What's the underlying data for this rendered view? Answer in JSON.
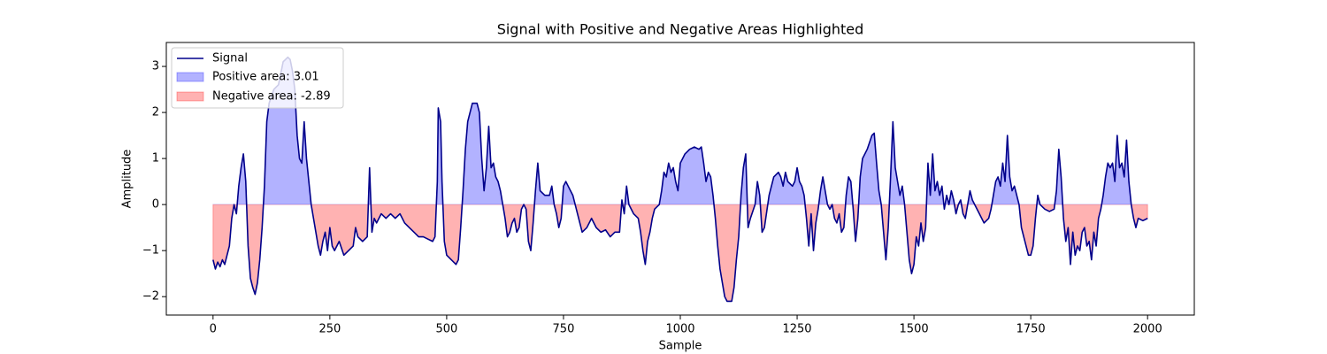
{
  "chart_data": {
    "type": "line",
    "title": "Signal with Positive and Negative Areas Highlighted",
    "xlabel": "Sample",
    "ylabel": "Amplitude",
    "x": [
      0,
      5,
      10,
      15,
      20,
      25,
      30,
      35,
      40,
      45,
      50,
      55,
      60,
      65,
      70,
      75,
      80,
      85,
      90,
      95,
      100,
      105,
      110,
      115,
      120,
      130,
      140,
      150,
      160,
      165,
      170,
      175,
      180,
      185,
      190,
      195,
      200,
      205,
      210,
      215,
      220,
      225,
      230,
      235,
      240,
      245,
      250,
      255,
      260,
      270,
      280,
      290,
      300,
      305,
      310,
      320,
      330,
      335,
      340,
      345,
      350,
      360,
      370,
      380,
      390,
      400,
      410,
      420,
      430,
      440,
      450,
      460,
      470,
      475,
      480,
      482,
      487,
      490,
      495,
      500,
      510,
      520,
      525,
      530,
      535,
      540,
      545,
      555,
      565,
      570,
      575,
      580,
      585,
      590,
      595,
      600,
      605,
      610,
      615,
      620,
      625,
      630,
      635,
      640,
      645,
      650,
      655,
      660,
      665,
      670,
      675,
      680,
      685,
      690,
      695,
      700,
      710,
      720,
      725,
      730,
      735,
      740,
      745,
      750,
      755,
      760,
      770,
      780,
      790,
      800,
      810,
      820,
      830,
      840,
      850,
      860,
      870,
      875,
      880,
      885,
      890,
      900,
      910,
      915,
      920,
      925,
      930,
      935,
      940,
      945,
      950,
      955,
      960,
      965,
      970,
      975,
      980,
      985,
      990,
      995,
      1000,
      1010,
      1020,
      1030,
      1040,
      1045,
      1050,
      1055,
      1060,
      1065,
      1070,
      1075,
      1080,
      1085,
      1090,
      1095,
      1100,
      1110,
      1115,
      1120,
      1125,
      1130,
      1135,
      1140,
      1145,
      1150,
      1160,
      1165,
      1170,
      1175,
      1180,
      1190,
      1200,
      1210,
      1215,
      1220,
      1225,
      1230,
      1240,
      1245,
      1250,
      1255,
      1260,
      1265,
      1270,
      1275,
      1280,
      1285,
      1290,
      1295,
      1300,
      1305,
      1310,
      1315,
      1320,
      1325,
      1330,
      1335,
      1340,
      1345,
      1350,
      1355,
      1360,
      1365,
      1370,
      1375,
      1380,
      1385,
      1390,
      1400,
      1410,
      1415,
      1420,
      1425,
      1430,
      1435,
      1440,
      1445,
      1450,
      1455,
      1460,
      1465,
      1470,
      1475,
      1480,
      1485,
      1490,
      1495,
      1500,
      1505,
      1510,
      1515,
      1520,
      1525,
      1530,
      1535,
      1540,
      1545,
      1550,
      1555,
      1560,
      1565,
      1570,
      1575,
      1580,
      1585,
      1590,
      1595,
      1600,
      1605,
      1610,
      1620,
      1625,
      1630,
      1640,
      1650,
      1660,
      1665,
      1670,
      1675,
      1680,
      1685,
      1690,
      1695,
      1700,
      1705,
      1710,
      1715,
      1720,
      1725,
      1730,
      1740,
      1745,
      1750,
      1755,
      1760,
      1765,
      1770,
      1780,
      1790,
      1800,
      1805,
      1810,
      1815,
      1820,
      1825,
      1830,
      1835,
      1840,
      1845,
      1850,
      1855,
      1860,
      1865,
      1870,
      1875,
      1880,
      1885,
      1890,
      1895,
      1900,
      1905,
      1910,
      1915,
      1920,
      1925,
      1930,
      1935,
      1940,
      1945,
      1950,
      1955,
      1960,
      1965,
      1970,
      1975,
      1980,
      1990,
      2000
    ],
    "series": [
      {
        "name": "Signal",
        "color": "#00008b",
        "values": [
          -1.2,
          -1.4,
          -1.25,
          -1.35,
          -1.2,
          -1.3,
          -1.1,
          -0.9,
          -0.3,
          0.0,
          -0.2,
          0.4,
          0.8,
          1.1,
          0.5,
          -0.9,
          -1.6,
          -1.8,
          -1.95,
          -1.7,
          -1.2,
          -0.5,
          0.4,
          1.8,
          2.2,
          2.5,
          2.6,
          3.1,
          3.2,
          3.15,
          2.9,
          2.5,
          1.5,
          1.0,
          0.9,
          1.8,
          1.0,
          0.5,
          0.0,
          -0.3,
          -0.6,
          -0.9,
          -1.1,
          -0.8,
          -0.6,
          -1.0,
          -0.5,
          -0.9,
          -1.0,
          -0.8,
          -1.1,
          -1.0,
          -0.9,
          -0.5,
          -0.7,
          -0.8,
          -0.7,
          0.8,
          -0.6,
          -0.3,
          -0.4,
          -0.2,
          -0.3,
          -0.2,
          -0.3,
          -0.2,
          -0.4,
          -0.5,
          -0.6,
          -0.7,
          -0.7,
          -0.75,
          -0.8,
          -0.7,
          0.5,
          2.1,
          1.8,
          0.5,
          -0.8,
          -1.1,
          -1.2,
          -1.3,
          -1.2,
          -0.5,
          0.3,
          1.2,
          1.8,
          2.2,
          2.2,
          2.0,
          1.0,
          0.3,
          0.8,
          1.7,
          0.8,
          0.9,
          0.6,
          0.5,
          0.3,
          0.0,
          -0.3,
          -0.7,
          -0.6,
          -0.4,
          -0.3,
          -0.6,
          -0.5,
          -0.1,
          0.0,
          -0.1,
          -0.8,
          -1.0,
          -0.4,
          0.3,
          0.9,
          0.3,
          0.2,
          0.2,
          0.4,
          0.0,
          -0.2,
          -0.5,
          -0.3,
          0.4,
          0.5,
          0.4,
          0.2,
          -0.2,
          -0.6,
          -0.5,
          -0.3,
          -0.5,
          -0.6,
          -0.55,
          -0.7,
          -0.6,
          -0.6,
          0.1,
          -0.2,
          0.4,
          0.0,
          -0.2,
          -0.3,
          -0.6,
          -1.0,
          -1.3,
          -0.8,
          -0.6,
          -0.3,
          -0.1,
          -0.05,
          0.0,
          0.3,
          0.7,
          0.6,
          0.9,
          0.7,
          0.8,
          0.5,
          0.3,
          0.9,
          1.1,
          1.2,
          1.25,
          1.2,
          1.25,
          0.9,
          0.5,
          0.7,
          0.6,
          0.2,
          -0.3,
          -0.9,
          -1.4,
          -1.7,
          -2.0,
          -2.1,
          -2.1,
          -1.8,
          -1.2,
          -0.7,
          0.2,
          0.8,
          1.1,
          -0.5,
          -0.3,
          0.0,
          0.5,
          0.2,
          -0.6,
          -0.5,
          0.2,
          0.6,
          0.7,
          0.6,
          0.4,
          0.7,
          0.5,
          0.4,
          0.5,
          0.8,
          0.5,
          0.4,
          0.2,
          -0.3,
          -0.9,
          -0.2,
          -1.0,
          -0.4,
          -0.1,
          0.3,
          0.6,
          0.3,
          0.0,
          -0.1,
          0.0,
          -0.3,
          -0.4,
          -0.2,
          -0.6,
          -0.5,
          0.2,
          0.6,
          0.5,
          -0.1,
          -0.8,
          -0.3,
          0.6,
          1.0,
          1.2,
          1.5,
          1.55,
          0.9,
          0.3,
          0.0,
          -0.6,
          -1.2,
          -0.5,
          0.6,
          1.8,
          0.8,
          0.5,
          0.2,
          0.4,
          0.0,
          -0.6,
          -1.2,
          -1.5,
          -1.3,
          -0.7,
          -0.9,
          -0.4,
          -0.8,
          -0.5,
          0.9,
          0.2,
          1.1,
          0.3,
          0.5,
          0.2,
          0.4,
          -0.1,
          0.2,
          0.0,
          0.3,
          0.1,
          -0.2,
          0.0,
          0.1,
          -0.2,
          -0.3,
          0.3,
          0.1,
          0.0,
          -0.2,
          -0.4,
          -0.3,
          -0.1,
          0.2,
          0.5,
          0.6,
          0.4,
          0.9,
          0.5,
          1.5,
          0.6,
          0.3,
          0.4,
          0.2,
          0.0,
          -0.5,
          -0.9,
          -1.1,
          -1.1,
          -0.9,
          -0.3,
          0.2,
          0.0,
          -0.1,
          -0.15,
          -0.1,
          0.3,
          1.2,
          0.6,
          -0.3,
          -0.8,
          -0.5,
          -1.3,
          -0.6,
          -1.1,
          -0.9,
          -1.0,
          -0.6,
          -0.5,
          -0.9,
          -0.8,
          -1.2,
          -0.6,
          -0.9,
          -0.3,
          -0.1,
          0.2,
          0.6,
          0.9,
          0.8,
          0.9,
          0.5,
          1.5,
          0.8,
          0.9,
          0.6,
          1.4,
          0.5,
          0.0,
          -0.3,
          -0.5,
          -0.3,
          -0.35,
          -0.3
        ]
      }
    ],
    "fills": [
      {
        "name": "Positive area: 3.01",
        "color": "#0000ff"
      },
      {
        "name": "Negative area: -2.89",
        "color": "#ff0000"
      }
    ],
    "fill_alpha": 0.3,
    "xlim": [
      -100,
      2100
    ],
    "xticks": [
      0,
      250,
      500,
      750,
      1000,
      1250,
      1500,
      1750,
      2000
    ],
    "ylim": [
      -2.4,
      3.52
    ],
    "yticks": [
      {
        "value": -2,
        "label": "−2"
      },
      {
        "value": -1,
        "label": "−1"
      },
      0,
      1,
      2,
      3
    ],
    "legend": "upper left"
  }
}
